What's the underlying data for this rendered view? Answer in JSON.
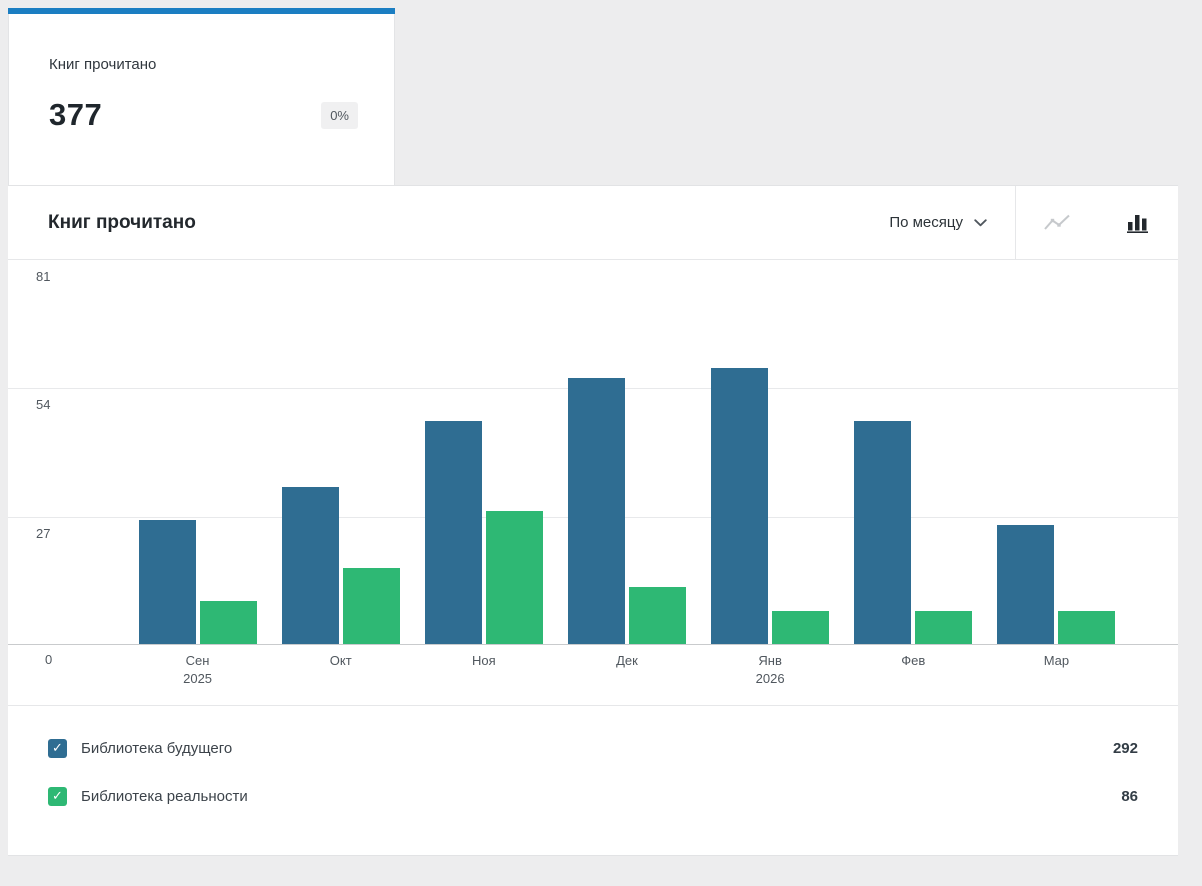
{
  "colors": {
    "accent_tab": "#1b7ec2",
    "series_primary": "#2f6d92",
    "series_secondary": "#2eb874"
  },
  "icons": {
    "check": "✓",
    "period_chevron": "chevron-down",
    "chart_toggle_line": "line-chart",
    "chart_toggle_bar": "bar-chart"
  },
  "stat_card": {
    "label": "Книг прочитано",
    "value": "377",
    "delta": "0%"
  },
  "panel": {
    "title": "Книг прочитано",
    "period_selector": "По месяцу"
  },
  "legend": [
    {
      "label": "Библиотека будущего",
      "value": "292",
      "color": "#2f6d92"
    },
    {
      "label": "Библиотека реальности",
      "value": "86",
      "color": "#2eb874"
    }
  ],
  "chart_data": {
    "type": "bar",
    "title": "Книг прочитано",
    "categories": [
      "Сен",
      "Окт",
      "Ноя",
      "Дек",
      "Янв",
      "Фев",
      "Мар"
    ],
    "year_labels": {
      "0": "2025",
      "4": "2026"
    },
    "series": [
      {
        "name": "Библиотека будущего",
        "color": "#2f6d92",
        "values": [
          26,
          33,
          47,
          56,
          58,
          47,
          25
        ],
        "total": 292
      },
      {
        "name": "Библиотека реальности",
        "color": "#2eb874",
        "values": [
          9,
          16,
          28,
          12,
          7,
          7,
          7
        ],
        "total": 86
      }
    ],
    "yticks": [
      0,
      27,
      54,
      81
    ],
    "ylim": [
      0,
      81
    ],
    "xlabel": "",
    "ylabel": "",
    "grid": true,
    "legend_position": "bottom"
  }
}
